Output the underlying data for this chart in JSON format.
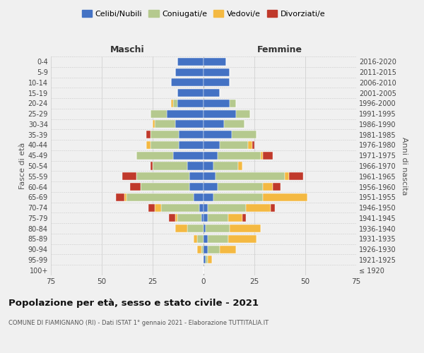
{
  "age_groups": [
    "100+",
    "95-99",
    "90-94",
    "85-89",
    "80-84",
    "75-79",
    "70-74",
    "65-69",
    "60-64",
    "55-59",
    "50-54",
    "45-49",
    "40-44",
    "35-39",
    "30-34",
    "25-29",
    "20-24",
    "15-19",
    "10-14",
    "5-9",
    "0-4"
  ],
  "birth_years": [
    "≤ 1920",
    "1921-1925",
    "1926-1930",
    "1931-1935",
    "1936-1940",
    "1941-1945",
    "1946-1950",
    "1951-1955",
    "1956-1960",
    "1961-1965",
    "1966-1970",
    "1971-1975",
    "1976-1980",
    "1981-1985",
    "1986-1990",
    "1991-1995",
    "1996-2000",
    "2001-2005",
    "2006-2010",
    "2011-2015",
    "2016-2020"
  ],
  "male_celibi": [
    0,
    0,
    0,
    0,
    0,
    1,
    2,
    5,
    7,
    7,
    8,
    15,
    12,
    12,
    14,
    18,
    13,
    13,
    16,
    14,
    13
  ],
  "male_coniugati": [
    0,
    0,
    1,
    3,
    8,
    12,
    19,
    33,
    24,
    26,
    17,
    18,
    14,
    14,
    10,
    8,
    2,
    0,
    0,
    0,
    0
  ],
  "male_vedovi": [
    0,
    0,
    2,
    2,
    6,
    1,
    3,
    1,
    0,
    0,
    0,
    0,
    2,
    0,
    1,
    0,
    1,
    0,
    0,
    0,
    0
  ],
  "male_divorziati": [
    0,
    0,
    0,
    0,
    0,
    3,
    3,
    4,
    5,
    7,
    1,
    0,
    0,
    2,
    0,
    0,
    0,
    0,
    0,
    0,
    0
  ],
  "female_celibi": [
    0,
    1,
    2,
    2,
    1,
    2,
    2,
    5,
    7,
    6,
    5,
    7,
    8,
    14,
    10,
    16,
    13,
    8,
    13,
    13,
    11
  ],
  "female_coniugati": [
    0,
    1,
    6,
    10,
    12,
    10,
    19,
    24,
    22,
    34,
    12,
    21,
    14,
    12,
    10,
    7,
    3,
    0,
    0,
    0,
    0
  ],
  "female_vedovi": [
    0,
    2,
    8,
    14,
    15,
    7,
    12,
    22,
    5,
    2,
    2,
    1,
    2,
    0,
    0,
    0,
    0,
    0,
    0,
    0,
    0
  ],
  "female_divorziati": [
    0,
    0,
    0,
    0,
    0,
    2,
    2,
    0,
    4,
    7,
    0,
    5,
    1,
    0,
    0,
    0,
    0,
    0,
    0,
    0,
    0
  ],
  "color_celibi": "#4472c4",
  "color_coniugati": "#b5c98e",
  "color_vedovi": "#f4b942",
  "color_divorziati": "#c0392b",
  "title": "Popolazione per età, sesso e stato civile - 2021",
  "subtitle": "COMUNE DI FIAMIGNANO (RI) - Dati ISTAT 1° gennaio 2021 - Elaborazione TUTTITALIA.IT",
  "xlabel_left": "Maschi",
  "xlabel_right": "Femmine",
  "ylabel_left": "Fasce di età",
  "ylabel_right": "Anni di nascita",
  "xlim": 75,
  "bg_color": "#f0f0f0",
  "grid_color": "#cccccc"
}
